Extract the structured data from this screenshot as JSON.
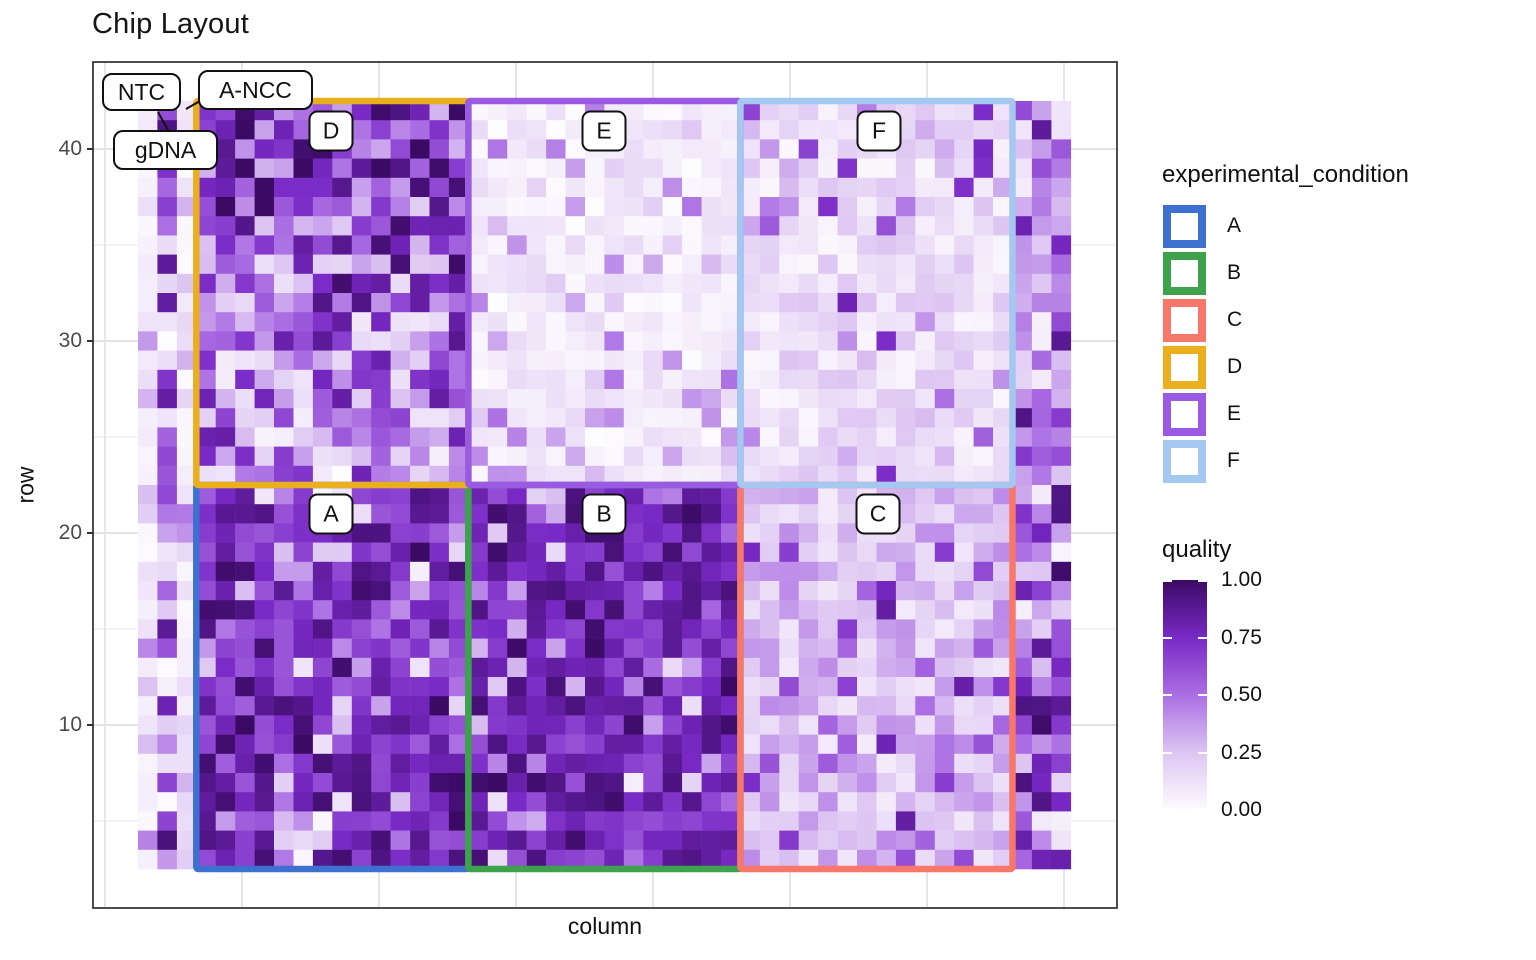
{
  "chart_data": {
    "type": "heatmap",
    "title": "Chip Layout",
    "x_label": "column",
    "y_label": "row",
    "y_ticks": [
      "40",
      "30",
      "20",
      "10"
    ],
    "y_tick_values": [
      40,
      30,
      20,
      10
    ],
    "y_minor_values": [
      35,
      25,
      15,
      5
    ],
    "grid": {
      "n_columns": 48,
      "row_min": 3,
      "row_max": 42
    },
    "colormap_stops": [
      [
        0.0,
        "#FDFCFE"
      ],
      [
        0.25,
        "#DDC5F2"
      ],
      [
        0.5,
        "#AB6EE3"
      ],
      [
        0.75,
        "#7929C5"
      ],
      [
        1.0,
        "#3B0A64"
      ]
    ],
    "regions": [
      {
        "id": "A",
        "label": "A",
        "color": "#3E70CF",
        "cols": [
          4,
          17
        ],
        "rows": [
          3,
          22
        ],
        "quality_profile": {
          "min": 0.55,
          "max": 1.0,
          "outlier_p": 0.17,
          "outlier_min": 0.02,
          "outlier_max": 0.5
        }
      },
      {
        "id": "B",
        "label": "B",
        "color": "#3EA24C",
        "cols": [
          18,
          31
        ],
        "rows": [
          3,
          22
        ],
        "quality_profile": {
          "min": 0.6,
          "max": 1.0,
          "outlier_p": 0.14,
          "outlier_min": 0.05,
          "outlier_max": 0.55
        }
      },
      {
        "id": "C",
        "label": "C",
        "color": "#F8776B",
        "cols": [
          32,
          45
        ],
        "rows": [
          3,
          22
        ],
        "quality_profile": {
          "min": 0.08,
          "max": 0.42,
          "outlier_p": 0.09,
          "outlier_min": 0.45,
          "outlier_max": 0.85
        }
      },
      {
        "id": "D",
        "label": "D",
        "color": "#EAAF1E",
        "cols": [
          4,
          17
        ],
        "rows": [
          23,
          42
        ],
        "quality_profile": {
          "min": 0.1,
          "max": 0.97,
          "outlier_p": 0.0,
          "outlier_min": 0,
          "outlier_max": 0,
          "row_bias": 0.3
        }
      },
      {
        "id": "E",
        "label": "E",
        "color": "#9B5AE4",
        "cols": [
          18,
          31
        ],
        "rows": [
          23,
          42
        ],
        "quality_profile": {
          "min": 0.0,
          "max": 0.16,
          "outlier_p": 0.12,
          "outlier_min": 0.18,
          "outlier_max": 0.5
        }
      },
      {
        "id": "F",
        "label": "F",
        "color": "#A5C8F1",
        "cols": [
          32,
          45
        ],
        "rows": [
          23,
          42
        ],
        "quality_profile": {
          "min": 0.02,
          "max": 0.25,
          "outlier_p": 0.13,
          "outlier_min": 0.25,
          "outlier_max": 0.8
        }
      }
    ],
    "margin_zones": [
      {
        "name": "left-col-1",
        "cols": [
          1,
          1
        ],
        "rows": [
          3,
          42
        ],
        "quality_profile": {
          "min": 0.0,
          "max": 0.14,
          "outlier_p": 0.18,
          "outlier_min": 0.15,
          "outlier_max": 0.45
        }
      },
      {
        "name": "left-col-2-gdna",
        "cols": [
          2,
          2
        ],
        "rows": [
          3,
          42
        ],
        "quality_profile": {
          "min": 0.15,
          "max": 0.95,
          "outlier_p": 0.25,
          "outlier_min": 0.0,
          "outlier_max": 0.15
        }
      },
      {
        "name": "left-col-3",
        "cols": [
          3,
          3
        ],
        "rows": [
          3,
          42
        ],
        "quality_profile": {
          "min": 0.0,
          "max": 0.18,
          "outlier_p": 0.12,
          "outlier_min": 0.2,
          "outlier_max": 0.5
        }
      },
      {
        "name": "right-cols-top",
        "cols": [
          46,
          48
        ],
        "rows": [
          23,
          42
        ],
        "quality_profile": {
          "min": 0.05,
          "max": 0.6,
          "outlier_p": 0.2,
          "outlier_min": 0.6,
          "outlier_max": 0.95
        }
      },
      {
        "name": "right-cols-bottom",
        "cols": [
          46,
          48
        ],
        "rows": [
          3,
          22
        ],
        "quality_profile": {
          "min": 0.2,
          "max": 1.0,
          "outlier_p": 0.15,
          "outlier_min": 0.02,
          "outlier_max": 0.3
        }
      }
    ],
    "annotations": [
      {
        "label": "NTC"
      },
      {
        "label": "A-NCC"
      },
      {
        "label": "gDNA"
      }
    ],
    "condition_legend": {
      "title": "experimental_condition",
      "items": [
        {
          "label": "A",
          "color": "#3E70CF"
        },
        {
          "label": "B",
          "color": "#3EA24C"
        },
        {
          "label": "C",
          "color": "#F8776B"
        },
        {
          "label": "D",
          "color": "#EAAF1E"
        },
        {
          "label": "E",
          "color": "#9B5AE4"
        },
        {
          "label": "F",
          "color": "#A5C8F1"
        }
      ]
    },
    "quality_legend": {
      "title": "quality",
      "ticks": [
        "1.00",
        "0.75",
        "0.50",
        "0.25",
        "0.00"
      ],
      "tick_values": [
        1.0,
        0.75,
        0.5,
        0.25,
        0.0
      ]
    }
  },
  "seed": 11
}
